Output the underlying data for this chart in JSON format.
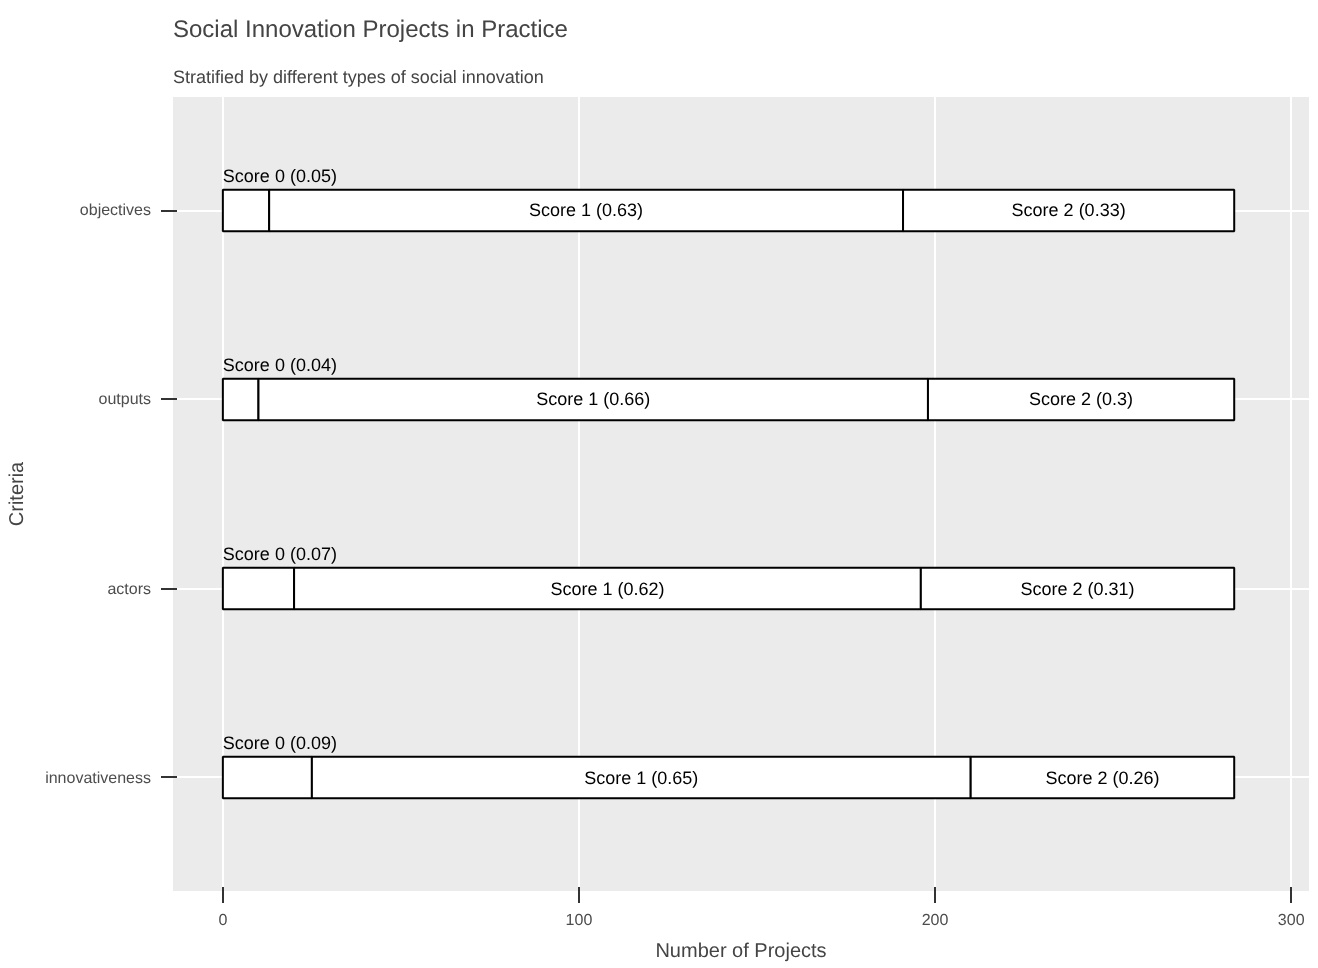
{
  "chart_data": {
    "type": "bar",
    "orientation": "horizontal",
    "stacked": true,
    "title": "Social Innovation Projects in Practice",
    "subtitle": "Stratified by different types of social innovation",
    "xlabel": "Number of Projects",
    "ylabel": "Criteria",
    "categories": [
      "objectives",
      "outputs",
      "actors",
      "innovativeness"
    ],
    "series": [
      {
        "color": "#ffffff",
        "values": [
          13,
          10,
          20,
          25
        ],
        "value_labels": [
          "Score 0 (0.05)",
          "Score 0 (0.04)",
          "Score 0 (0.07)",
          "Score 0 (0.09)"
        ]
      },
      {
        "color": "#ffffff",
        "values": [
          178,
          188,
          176,
          185
        ],
        "value_labels": [
          "Score 1 (0.63)",
          "Score 1 (0.66)",
          "Score 1 (0.62)",
          "Score 1 (0.65)"
        ]
      },
      {
        "color": "#ffffff",
        "values": [
          93,
          86,
          88,
          74
        ],
        "value_labels": [
          "Score 2 (0.33)",
          "Score 2 (0.3)",
          "Score 2 (0.31)",
          "Score 2 (0.26)"
        ]
      }
    ],
    "xlim": [
      -14,
      305
    ],
    "xticks": [
      0,
      100,
      200,
      300
    ],
    "grid": true
  }
}
